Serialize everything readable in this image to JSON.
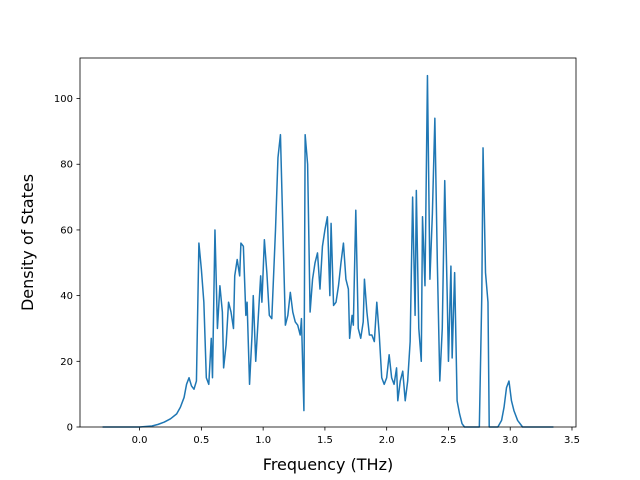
{
  "chart_data": {
    "type": "line",
    "xlabel": "Frequency (THz)",
    "ylabel": "Density of States",
    "color": "#1f77b4",
    "x": [
      -0.3,
      0.0,
      0.1,
      0.15,
      0.2,
      0.25,
      0.3,
      0.33,
      0.36,
      0.38,
      0.4,
      0.42,
      0.44,
      0.46,
      0.48,
      0.5,
      0.52,
      0.54,
      0.56,
      0.58,
      0.59,
      0.61,
      0.63,
      0.65,
      0.67,
      0.68,
      0.7,
      0.72,
      0.74,
      0.76,
      0.77,
      0.79,
      0.81,
      0.82,
      0.84,
      0.86,
      0.87,
      0.89,
      0.91,
      0.92,
      0.94,
      0.96,
      0.98,
      0.99,
      1.01,
      1.03,
      1.05,
      1.07,
      1.1,
      1.12,
      1.14,
      1.16,
      1.18,
      1.2,
      1.22,
      1.24,
      1.26,
      1.28,
      1.3,
      1.31,
      1.33,
      1.34,
      1.36,
      1.38,
      1.4,
      1.42,
      1.44,
      1.46,
      1.48,
      1.5,
      1.52,
      1.54,
      1.55,
      1.57,
      1.59,
      1.61,
      1.63,
      1.65,
      1.67,
      1.69,
      1.7,
      1.72,
      1.73,
      1.75,
      1.77,
      1.79,
      1.81,
      1.82,
      1.84,
      1.86,
      1.88,
      1.9,
      1.92,
      1.94,
      1.96,
      1.98,
      2.0,
      2.02,
      2.04,
      2.06,
      2.08,
      2.09,
      2.11,
      2.13,
      2.15,
      2.17,
      2.19,
      2.21,
      2.23,
      2.24,
      2.26,
      2.28,
      2.29,
      2.31,
      2.33,
      2.35,
      2.37,
      2.39,
      2.41,
      2.43,
      2.45,
      2.47,
      2.49,
      2.5,
      2.52,
      2.53,
      2.55,
      2.57,
      2.59,
      2.61,
      2.63,
      2.75,
      2.77,
      2.78,
      2.8,
      2.82,
      2.83,
      2.9,
      2.93,
      2.95,
      2.97,
      2.99,
      3.01,
      3.03,
      3.06,
      3.1,
      3.35
    ],
    "values": [
      0,
      0,
      0.3,
      0.8,
      1.5,
      2.5,
      4,
      6,
      9,
      13,
      15,
      12.5,
      11.5,
      14,
      56,
      48,
      38,
      15,
      13,
      27,
      15,
      60,
      30,
      43,
      35,
      18,
      25,
      38,
      35,
      30,
      46,
      51,
      46,
      56,
      55,
      34,
      38,
      13,
      28,
      40,
      20,
      33,
      46,
      38,
      57,
      47,
      34,
      33,
      60,
      82,
      89,
      60,
      31,
      34,
      41,
      35,
      32,
      31,
      28,
      33,
      5,
      89,
      80,
      35,
      45,
      50,
      53,
      42,
      55,
      60,
      64,
      40,
      62,
      37,
      38,
      43,
      50,
      56,
      45,
      42,
      27,
      34,
      31,
      66,
      30,
      27,
      32,
      45,
      35,
      28,
      28,
      26,
      38,
      28,
      15,
      13,
      15,
      22,
      15,
      13,
      18,
      8,
      14,
      17,
      8,
      14,
      26,
      70,
      34,
      72,
      30,
      20,
      64,
      43,
      107,
      45,
      65,
      94,
      50,
      14,
      30,
      75,
      40,
      20,
      49,
      21,
      47,
      8,
      4,
      1,
      0,
      0,
      40,
      85,
      47,
      38,
      0,
      0,
      2,
      6,
      12,
      14,
      8,
      5,
      2,
      0,
      0
    ],
    "xlim": [
      -0.4825,
      3.5325
    ],
    "xticks": [
      {
        "value": 0,
        "label": "0.0"
      },
      0.5,
      {
        "value": 1,
        "label": "1.0"
      },
      1.5,
      {
        "value": 2,
        "label": "2.0"
      },
      2.5,
      {
        "value": 3,
        "label": "3.0"
      },
      3.5
    ],
    "ylim": [
      0,
      112.35
    ],
    "yticks": [
      0,
      20,
      40,
      60,
      80,
      100
    ]
  }
}
